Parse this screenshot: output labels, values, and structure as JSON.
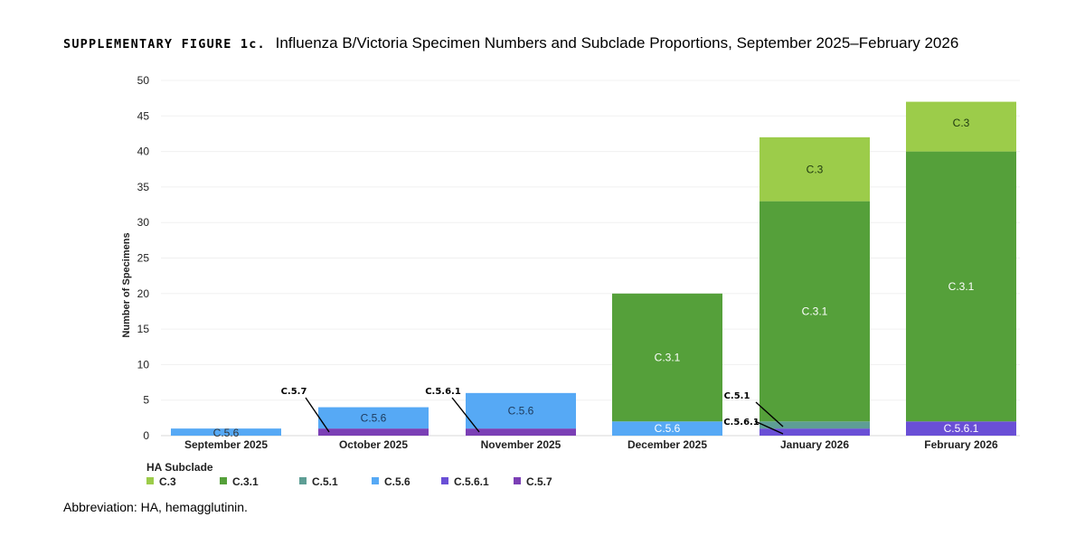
{
  "figure": {
    "label": "SUPPLEMENTARY FIGURE 1c.",
    "title": "Influenza B/Victoria Specimen Numbers and Subclade Proportions, September 2025–February 2026",
    "footnote": "Abbreviation: HA, hemagglutinin."
  },
  "chart_data": {
    "type": "bar",
    "stacked": true,
    "title": "Influenza B/Victoria Specimen Numbers and Subclade Proportions, September 2025–February 2026",
    "xlabel": "",
    "ylabel": "Number of Specimens",
    "ylim": [
      0,
      50
    ],
    "yticks": [
      0,
      5,
      10,
      15,
      20,
      25,
      30,
      35,
      40,
      45,
      50
    ],
    "grid": true,
    "legend": {
      "title": "HA Subclade",
      "placement": "bottom-left"
    },
    "categories": [
      "September 2025",
      "October 2025",
      "November 2025",
      "December 2025",
      "January 2026",
      "February 2026"
    ],
    "series": [
      {
        "name": "C.5.7",
        "color": "#7b3fb5",
        "values": [
          0,
          1,
          1,
          0,
          0,
          0
        ]
      },
      {
        "name": "C.5.6.1",
        "color": "#6a4fd6",
        "values": [
          0,
          0,
          0,
          0,
          1,
          2
        ]
      },
      {
        "name": "C.5.6",
        "color": "#56a9f5",
        "values": [
          1,
          3,
          5,
          2,
          0,
          0
        ]
      },
      {
        "name": "C.5.1",
        "color": "#5e9e95",
        "values": [
          0,
          0,
          0,
          0,
          1,
          0
        ]
      },
      {
        "name": "C.3.1",
        "color": "#55a03a",
        "values": [
          0,
          0,
          0,
          18,
          31,
          38
        ]
      },
      {
        "name": "C.3",
        "color": "#9ccc4a",
        "values": [
          0,
          0,
          0,
          0,
          9,
          7
        ]
      }
    ],
    "legend_order": [
      "C.3",
      "C.3.1",
      "C.5.1",
      "C.5.6",
      "C.5.6.1",
      "C.5.7"
    ],
    "annotations": [
      "C.5.7",
      "C.5.6.1",
      "C.5.1",
      "C.5.6.1"
    ]
  }
}
